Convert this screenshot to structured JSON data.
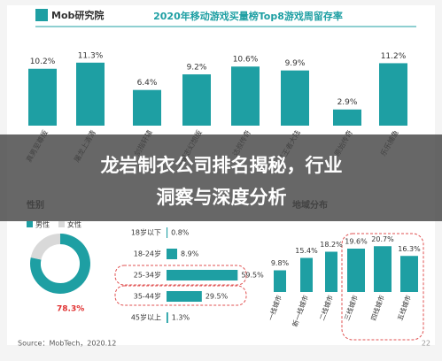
{
  "logo": "Mob研究院",
  "overlay_title": [
    "龙岩制衣公司排名揭秘，行业",
    "洞察与深度分析"
  ],
  "footer": "Source：MobTech，2020.12",
  "page_number": "22",
  "chart_data": [
    {
      "type": "bar",
      "title": "2020年移动游戏买量榜Top8游戏周留存率",
      "color": "#1e9fa3",
      "categories": [
        "真男至尊版",
        "屠龙上清清",
        "剑指轩辕",
        "三国志幻想版",
        "达叔传奇",
        "赤狐王者大陆",
        "原始传奇",
        "乐乐捕鱼"
      ],
      "values": [
        10.2,
        11.3,
        6.4,
        9.2,
        10.6,
        9.9,
        2.9,
        11.2
      ],
      "value_labels": [
        "10.2%",
        "11.3%",
        "6.4%",
        "9.2%",
        "10.6%",
        "9.9%",
        "2.9%",
        "11.2%"
      ]
    },
    {
      "type": "pie",
      "title": "性别",
      "categories": [
        "男性",
        "女性"
      ],
      "values": [
        78.3,
        21.7
      ],
      "colors": [
        "#1e9fa3",
        "#d9d9d9"
      ],
      "value_labels": [
        "78.3%",
        null
      ]
    },
    {
      "type": "hbar",
      "color": "#1e9fa3",
      "categories": [
        "18岁以下",
        "18-24岁",
        "25-34岁",
        "35-44岁",
        "45岁以上"
      ],
      "values": [
        0.8,
        8.9,
        59.5,
        29.5,
        1.3
      ],
      "value_labels": [
        "0.8%",
        "8.9%",
        "59.5%",
        "29.5%",
        "1.3%"
      ]
    },
    {
      "type": "bar",
      "title": "地域分布",
      "color": "#1e9fa3",
      "categories": [
        "一线城市",
        "新一线城市",
        "二线城市",
        "三线城市",
        "四线城市",
        "五线城市"
      ],
      "values": [
        9.8,
        15.4,
        18.2,
        19.6,
        20.7,
        16.3
      ],
      "value_labels": [
        "9.8%",
        "15.4%",
        "18.2%",
        "19.6%",
        "20.7%",
        "16.3%"
      ]
    }
  ]
}
